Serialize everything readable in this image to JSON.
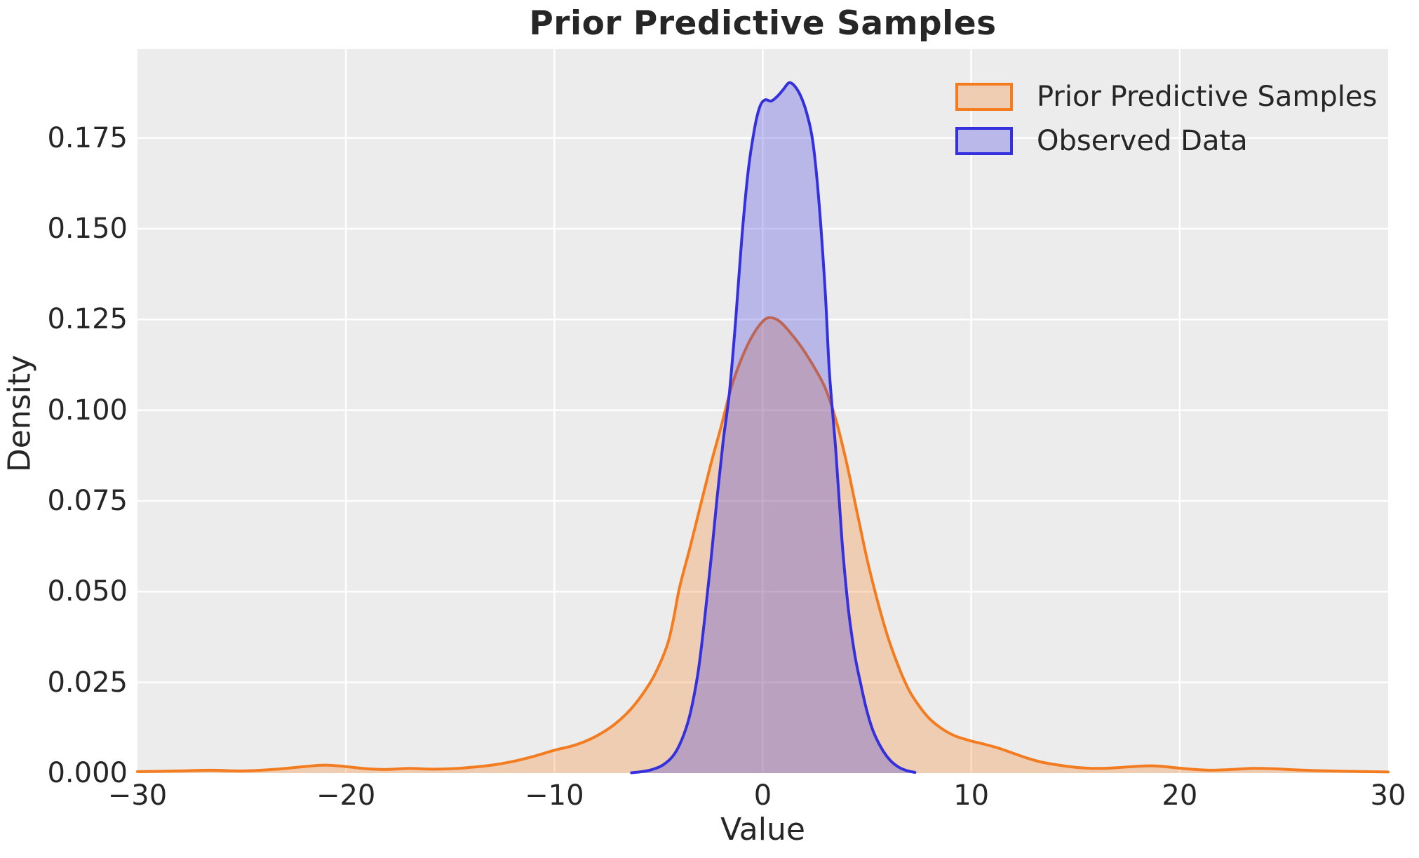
{
  "figure": {
    "background": "#FFFFFF",
    "plot_background": "#ECECEC",
    "grid_color": "#FFFFFF",
    "text_color": "#262626"
  },
  "chart_data": {
    "type": "area",
    "subtype": "kde-density",
    "title": "Prior Predictive Samples",
    "xlabel": "Value",
    "ylabel": "Density",
    "xlim": [
      -30,
      30
    ],
    "ylim": [
      0,
      0.1995
    ],
    "grid": true,
    "legend_position": "upper right",
    "x_ticks": [
      {
        "value": -30,
        "label": "−30"
      },
      {
        "value": -20,
        "label": "−20"
      },
      {
        "value": -10,
        "label": "−10"
      },
      {
        "value": 0,
        "label": "0"
      },
      {
        "value": 10,
        "label": "10"
      },
      {
        "value": 20,
        "label": "20"
      },
      {
        "value": 30,
        "label": "30"
      }
    ],
    "y_ticks": [
      {
        "value": 0.0,
        "label": "0.000"
      },
      {
        "value": 0.025,
        "label": "0.025"
      },
      {
        "value": 0.05,
        "label": "0.050"
      },
      {
        "value": 0.075,
        "label": "0.075"
      },
      {
        "value": 0.1,
        "label": "0.100"
      },
      {
        "value": 0.125,
        "label": "0.125"
      },
      {
        "value": 0.15,
        "label": "0.150"
      },
      {
        "value": 0.175,
        "label": "0.175"
      }
    ],
    "series": [
      {
        "name": "Prior Predictive Samples",
        "line_color": "#F47C20",
        "fill_opacity": 0.28,
        "line_width": 4,
        "points": [
          [
            -30,
            0.0004
          ],
          [
            -28,
            0.0006
          ],
          [
            -26.5,
            0.0008
          ],
          [
            -25,
            0.0006
          ],
          [
            -23.5,
            0.001
          ],
          [
            -22,
            0.0018
          ],
          [
            -21,
            0.0022
          ],
          [
            -20,
            0.0018
          ],
          [
            -19,
            0.0012
          ],
          [
            -18,
            0.001
          ],
          [
            -17,
            0.0013
          ],
          [
            -16,
            0.0011
          ],
          [
            -15,
            0.0012
          ],
          [
            -14,
            0.0016
          ],
          [
            -13,
            0.0022
          ],
          [
            -12,
            0.0032
          ],
          [
            -11,
            0.0046
          ],
          [
            -10,
            0.0063
          ],
          [
            -9.2,
            0.0074
          ],
          [
            -8.5,
            0.0088
          ],
          [
            -7.8,
            0.0108
          ],
          [
            -7.1,
            0.0135
          ],
          [
            -6.4,
            0.0172
          ],
          [
            -5.8,
            0.0215
          ],
          [
            -5.2,
            0.027
          ],
          [
            -4.6,
            0.035
          ],
          [
            -4.3,
            0.042
          ],
          [
            -4.0,
            0.051
          ],
          [
            -3.5,
            0.062
          ],
          [
            -3.0,
            0.0735
          ],
          [
            -2.5,
            0.085
          ],
          [
            -2.0,
            0.0955
          ],
          [
            -1.5,
            0.1065
          ],
          [
            -1.0,
            0.1145
          ],
          [
            -0.5,
            0.1205
          ],
          [
            0,
            0.1245
          ],
          [
            0.35,
            0.1255
          ],
          [
            0.8,
            0.1245
          ],
          [
            1.3,
            0.1215
          ],
          [
            1.9,
            0.117
          ],
          [
            2.5,
            0.1115
          ],
          [
            3.0,
            0.106
          ],
          [
            3.5,
            0.0975
          ],
          [
            4.0,
            0.086
          ],
          [
            4.5,
            0.0725
          ],
          [
            5.0,
            0.059
          ],
          [
            5.5,
            0.0475
          ],
          [
            6.0,
            0.0375
          ],
          [
            6.5,
            0.0295
          ],
          [
            7.0,
            0.023
          ],
          [
            7.5,
            0.0185
          ],
          [
            8.0,
            0.015
          ],
          [
            8.6,
            0.0122
          ],
          [
            9.2,
            0.0103
          ],
          [
            9.9,
            0.009
          ],
          [
            10.6,
            0.008
          ],
          [
            11.3,
            0.0069
          ],
          [
            12.0,
            0.0055
          ],
          [
            12.7,
            0.0041
          ],
          [
            13.4,
            0.003
          ],
          [
            14.2,
            0.0022
          ],
          [
            15.0,
            0.0016
          ],
          [
            16.0,
            0.0013
          ],
          [
            17.0,
            0.0015
          ],
          [
            18.0,
            0.0019
          ],
          [
            18.8,
            0.002
          ],
          [
            19.6,
            0.0016
          ],
          [
            20.5,
            0.0011
          ],
          [
            21.5,
            0.0008
          ],
          [
            22.5,
            0.001
          ],
          [
            23.5,
            0.0013
          ],
          [
            24.5,
            0.0012
          ],
          [
            25.5,
            0.0009
          ],
          [
            26.5,
            0.0007
          ],
          [
            28,
            0.0005
          ],
          [
            30,
            0.0003
          ]
        ]
      },
      {
        "name": "Observed Data",
        "line_color": "#3430DD",
        "fill_opacity": 0.28,
        "line_width": 4,
        "points": [
          [
            -6.3,
            0.0001
          ],
          [
            -5.8,
            0.0004
          ],
          [
            -5.3,
            0.001
          ],
          [
            -4.8,
            0.0022
          ],
          [
            -4.3,
            0.0048
          ],
          [
            -3.9,
            0.009
          ],
          [
            -3.5,
            0.016
          ],
          [
            -3.1,
            0.028
          ],
          [
            -2.8,
            0.042
          ],
          [
            -2.5,
            0.058
          ],
          [
            -2.2,
            0.0755
          ],
          [
            -1.9,
            0.0915
          ],
          [
            -1.6,
            0.105
          ],
          [
            -1.3,
            0.125
          ],
          [
            -1.0,
            0.148
          ],
          [
            -0.7,
            0.166
          ],
          [
            -0.4,
            0.1775
          ],
          [
            -0.15,
            0.1835
          ],
          [
            0.1,
            0.1855
          ],
          [
            0.4,
            0.1852
          ],
          [
            0.7,
            0.1865
          ],
          [
            1.0,
            0.1885
          ],
          [
            1.25,
            0.1902
          ],
          [
            1.5,
            0.1895
          ],
          [
            1.8,
            0.1868
          ],
          [
            2.1,
            0.182
          ],
          [
            2.4,
            0.174
          ],
          [
            2.7,
            0.157
          ],
          [
            3.0,
            0.132
          ],
          [
            3.2,
            0.11
          ],
          [
            3.5,
            0.089
          ],
          [
            3.8,
            0.064
          ],
          [
            4.1,
            0.0455
          ],
          [
            4.4,
            0.033
          ],
          [
            4.7,
            0.0245
          ],
          [
            5.0,
            0.017
          ],
          [
            5.3,
            0.0115
          ],
          [
            5.7,
            0.0068
          ],
          [
            6.1,
            0.0036
          ],
          [
            6.5,
            0.0017
          ],
          [
            6.9,
            0.0007
          ],
          [
            7.3,
            0.0002
          ]
        ]
      }
    ]
  }
}
